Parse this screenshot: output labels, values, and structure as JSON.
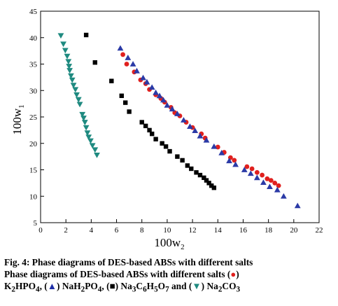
{
  "chart_data": {
    "type": "scatter",
    "xlabel_main": "100w",
    "xlabel_sub": "2",
    "ylabel_main": "100w",
    "ylabel_sub": "1",
    "xlim": [
      0,
      22
    ],
    "ylim": [
      5,
      45
    ],
    "xticks": [
      "0",
      "2",
      "4",
      "6",
      "8",
      "10",
      "12",
      "14",
      "16",
      "18",
      "20",
      "22"
    ],
    "yticks": [
      "5",
      "10",
      "15",
      "20",
      "25",
      "30",
      "35",
      "40",
      "45"
    ],
    "colors": {
      "K2HPO4": "#e0201e",
      "NaH2PO4": "#2b3aa6",
      "Na3C6H5O7": "#000000",
      "Na2CO3": "#1f8a80"
    },
    "series": [
      {
        "key": "K2HPO4",
        "marker": "circle",
        "points": [
          [
            6.5,
            36.8
          ],
          [
            6.8,
            35.0
          ],
          [
            7.4,
            33.5
          ],
          [
            7.9,
            32.0
          ],
          [
            8.3,
            31.3
          ],
          [
            8.6,
            30.2
          ],
          [
            9.1,
            29.2
          ],
          [
            9.5,
            28.5
          ],
          [
            9.8,
            27.8
          ],
          [
            10.3,
            26.8
          ],
          [
            10.6,
            25.8
          ],
          [
            11.0,
            25.2
          ],
          [
            11.5,
            24.0
          ],
          [
            12.0,
            23.0
          ],
          [
            12.7,
            21.8
          ],
          [
            13.0,
            21.0
          ],
          [
            14.0,
            19.3
          ],
          [
            14.5,
            18.3
          ],
          [
            15.0,
            17.3
          ],
          [
            15.3,
            16.8
          ],
          [
            16.3,
            15.6
          ],
          [
            16.7,
            15.2
          ],
          [
            17.1,
            14.5
          ],
          [
            17.5,
            14.0
          ],
          [
            17.9,
            13.3
          ],
          [
            18.2,
            13.0
          ],
          [
            18.5,
            12.5
          ],
          [
            18.8,
            12.0
          ]
        ]
      },
      {
        "key": "NaH2PO4",
        "marker": "triangle-up",
        "points": [
          [
            6.3,
            38.0
          ],
          [
            6.9,
            36.2
          ],
          [
            7.3,
            35.0
          ],
          [
            7.6,
            33.7
          ],
          [
            8.1,
            32.4
          ],
          [
            8.4,
            31.6
          ],
          [
            8.8,
            30.6
          ],
          [
            9.1,
            29.6
          ],
          [
            9.4,
            29.0
          ],
          [
            9.7,
            28.2
          ],
          [
            10.0,
            27.2
          ],
          [
            10.4,
            26.5
          ],
          [
            10.8,
            25.6
          ],
          [
            11.3,
            24.4
          ],
          [
            11.8,
            23.2
          ],
          [
            12.2,
            22.4
          ],
          [
            12.6,
            21.4
          ],
          [
            13.1,
            20.6
          ],
          [
            13.7,
            19.4
          ],
          [
            14.3,
            18.2
          ],
          [
            14.9,
            16.7
          ],
          [
            15.4,
            16.0
          ],
          [
            16.1,
            15.0
          ],
          [
            16.6,
            14.3
          ],
          [
            17.1,
            13.5
          ],
          [
            17.6,
            12.6
          ],
          [
            18.1,
            11.8
          ],
          [
            18.7,
            11.2
          ],
          [
            19.2,
            10.0
          ],
          [
            20.3,
            8.2
          ]
        ]
      },
      {
        "key": "Na3C6H5O7",
        "marker": "square",
        "points": [
          [
            3.6,
            40.5
          ],
          [
            4.3,
            35.3
          ],
          [
            5.6,
            31.8
          ],
          [
            6.4,
            29.0
          ],
          [
            6.7,
            27.7
          ],
          [
            7.0,
            26.0
          ],
          [
            8.0,
            24.0
          ],
          [
            8.3,
            23.3
          ],
          [
            8.6,
            22.5
          ],
          [
            8.8,
            21.8
          ],
          [
            9.1,
            20.8
          ],
          [
            9.6,
            20.0
          ],
          [
            9.9,
            19.4
          ],
          [
            10.2,
            18.5
          ],
          [
            10.8,
            17.5
          ],
          [
            11.2,
            16.8
          ],
          [
            11.6,
            15.8
          ],
          [
            11.9,
            15.2
          ],
          [
            12.3,
            14.5
          ],
          [
            12.6,
            14.0
          ],
          [
            12.9,
            13.5
          ],
          [
            13.1,
            13.0
          ],
          [
            13.3,
            12.5
          ],
          [
            13.5,
            12.0
          ],
          [
            13.7,
            11.6
          ]
        ]
      },
      {
        "key": "Na2CO3",
        "marker": "triangle-down",
        "points": [
          [
            1.6,
            40.4
          ],
          [
            1.8,
            38.8
          ],
          [
            1.95,
            37.6
          ],
          [
            2.1,
            36.5
          ],
          [
            2.2,
            35.5
          ],
          [
            2.25,
            34.6
          ],
          [
            2.3,
            33.8
          ],
          [
            2.4,
            32.8
          ],
          [
            2.5,
            32.0
          ],
          [
            2.6,
            31.0
          ],
          [
            2.75,
            30.2
          ],
          [
            2.85,
            29.2
          ],
          [
            3.0,
            28.3
          ],
          [
            3.1,
            27.4
          ],
          [
            3.3,
            25.5
          ],
          [
            3.4,
            24.8
          ],
          [
            3.5,
            24.0
          ],
          [
            3.6,
            23.0
          ],
          [
            3.7,
            22.0
          ],
          [
            3.8,
            21.2
          ],
          [
            3.95,
            20.5
          ],
          [
            4.1,
            19.6
          ],
          [
            4.3,
            18.8
          ],
          [
            4.45,
            17.8
          ]
        ]
      }
    ]
  },
  "caption": {
    "line1": "Fig. 4: Phase diagrams of DES-based ABSs with different salts",
    "line2_text": "Phase diagrams of DES-based ABSs with different salts (",
    "line2_close": ")",
    "k2hpo4_main": "K",
    "k2hpo4_sub1": "2",
    "k2hpo4_mid": "HPO",
    "k2hpo4_sub2": "4",
    "sep1": ", (",
    "nah2po4_close": ") NaH",
    "nah2po4_sub1": "2",
    "nah2po4_mid": "PO",
    "nah2po4_sub2": "4",
    "sep2": ", (",
    "citrate_close": ") Na",
    "citrate_s1": "3",
    "citrate_c": "C",
    "citrate_s2": "6",
    "citrate_h": "H",
    "citrate_s3": "5",
    "citrate_o": "O",
    "citrate_s4": "7",
    "sep3": " and (",
    "carbonate_close": ") Na",
    "carbonate_s1": "2",
    "carbonate_co": "CO",
    "carbonate_s2": "3",
    "sym_circle": "●",
    "sym_tri_up": "▲",
    "sym_square": "■",
    "sym_tri_down": "▼"
  }
}
